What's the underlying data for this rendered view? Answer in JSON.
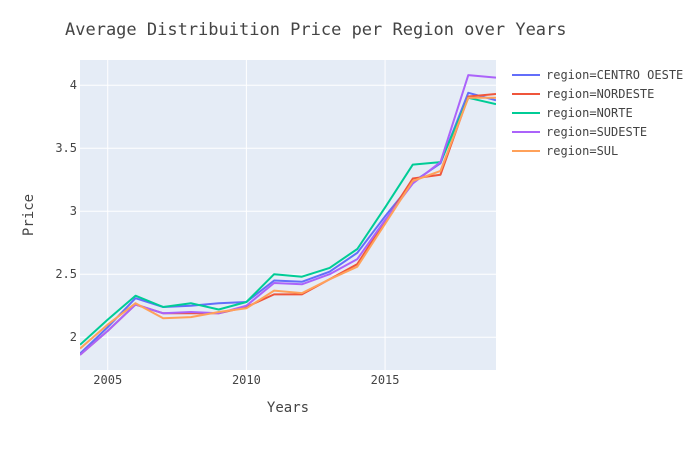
{
  "chart_data": {
    "type": "line",
    "title": "Average Distribuition Price per Region over Years",
    "xlabel": "Years",
    "ylabel": "Price",
    "xlim": [
      2004,
      2019
    ],
    "ylim": [
      1.74,
      4.2
    ],
    "x_ticks": [
      2005,
      2010,
      2015
    ],
    "y_ticks": [
      2,
      2.5,
      3,
      3.5,
      4
    ],
    "x_tick_labels": [
      "2005",
      "2010",
      "2015"
    ],
    "y_tick_labels": [
      "2",
      "2.5",
      "3",
      "3.5",
      "4"
    ],
    "grid": true,
    "legend_position": "right",
    "plot_background": "#e5ecf6",
    "x": [
      2004,
      2005,
      2006,
      2007,
      2008,
      2009,
      2010,
      2011,
      2012,
      2013,
      2014,
      2015,
      2016,
      2017,
      2018,
      2019
    ],
    "series": [
      {
        "name": "region=CENTRO OESTE",
        "color": "#636efa",
        "values": [
          1.87,
          2.08,
          2.31,
          2.24,
          2.25,
          2.27,
          2.28,
          2.45,
          2.44,
          2.52,
          2.67,
          2.96,
          3.23,
          3.38,
          3.94,
          3.88
        ]
      },
      {
        "name": "region=NORDESTE",
        "color": "#ef553b",
        "values": [
          1.86,
          2.05,
          2.26,
          2.19,
          2.19,
          2.19,
          2.24,
          2.34,
          2.34,
          2.46,
          2.58,
          2.92,
          3.26,
          3.29,
          3.91,
          3.93
        ]
      },
      {
        "name": "region=NORTE",
        "color": "#00cc96",
        "values": [
          1.94,
          2.14,
          2.33,
          2.24,
          2.27,
          2.22,
          2.28,
          2.5,
          2.48,
          2.55,
          2.7,
          3.03,
          3.37,
          3.39,
          3.9,
          3.85
        ]
      },
      {
        "name": "region=SUDESTE",
        "color": "#ab63fa",
        "values": [
          1.86,
          2.05,
          2.26,
          2.19,
          2.2,
          2.19,
          2.25,
          2.43,
          2.42,
          2.5,
          2.62,
          2.93,
          3.22,
          3.39,
          4.08,
          4.06
        ]
      },
      {
        "name": "region=SUL",
        "color": "#ffa15a",
        "values": [
          1.91,
          2.1,
          2.27,
          2.15,
          2.16,
          2.2,
          2.23,
          2.37,
          2.35,
          2.46,
          2.56,
          2.9,
          3.24,
          3.32,
          3.9,
          3.9
        ]
      }
    ]
  }
}
